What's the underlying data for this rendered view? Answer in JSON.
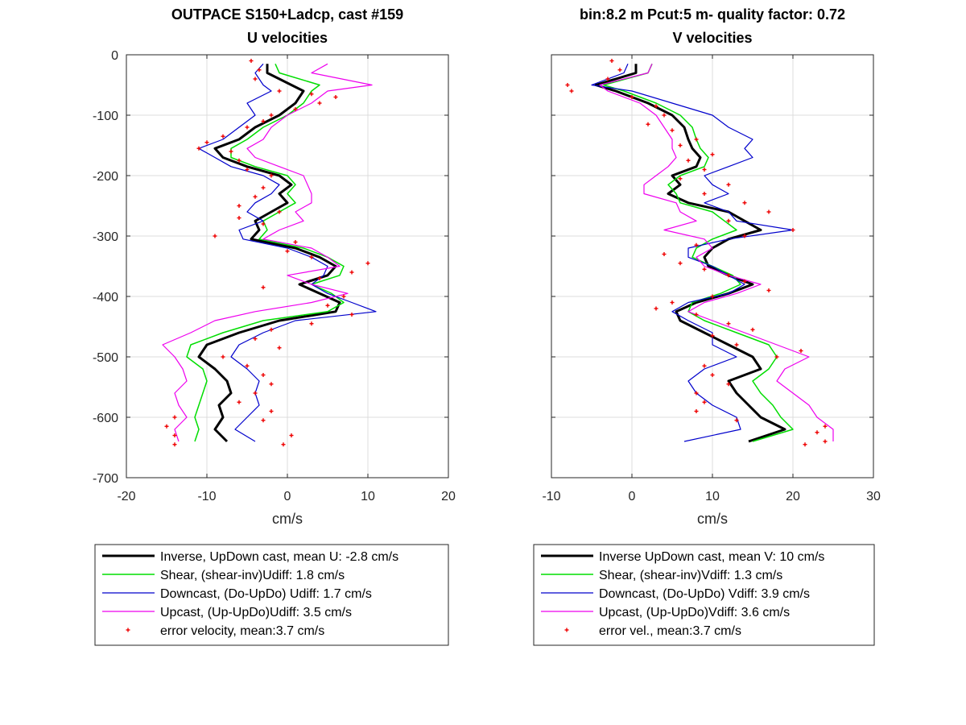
{
  "figure": {
    "left_title_line1": "OUTPACE S150+Ladcp, cast #159",
    "left_title_line2": "U velocities",
    "right_title_line1": "bin:8.2 m  Pcut:5 m- quality factor:  0.72",
    "right_title_line2": "V velocities"
  },
  "chart_data": [
    {
      "type": "line",
      "title": "U velocities",
      "xlabel": "cm/s",
      "ylabel": "",
      "xlim": [
        -20,
        20
      ],
      "ylim": [
        -700,
        0
      ],
      "xticks": [
        "-20",
        "-10",
        "0",
        "10",
        "20"
      ],
      "yticks": [
        "0",
        "-100",
        "-200",
        "-300",
        "-400",
        "-500",
        "-600",
        "-700"
      ],
      "grid": true,
      "legend_position": "below",
      "depth": [
        -15,
        -30,
        -50,
        -60,
        -80,
        -100,
        -120,
        -140,
        -155,
        -170,
        -185,
        -200,
        -215,
        -230,
        -245,
        -260,
        -275,
        -290,
        -305,
        -320,
        -335,
        -350,
        -365,
        -380,
        -395,
        -410,
        -425,
        -440,
        -460,
        -480,
        -500,
        -520,
        -540,
        -560,
        -580,
        -600,
        -620,
        -640
      ],
      "series": [
        {
          "name": "Inverse, UpDown cast, mean U:  -2.8 cm/s",
          "color": "#000000",
          "width": 3,
          "values": [
            -2.5,
            -2.5,
            0.5,
            2.0,
            1.0,
            -1.0,
            -4.0,
            -6.0,
            -9.0,
            -8.0,
            -5.0,
            -1.0,
            0.5,
            -1.0,
            0.0,
            -2.0,
            -4.0,
            -3.5,
            -4.5,
            1.0,
            4.0,
            6.0,
            5.0,
            1.5,
            4.0,
            6.5,
            6.0,
            -1.0,
            -6.0,
            -10.0,
            -11.0,
            -9.0,
            -7.5,
            -7.0,
            -8.5,
            -8.0,
            -9.0,
            -7.5
          ]
        },
        {
          "name": "Shear, (shear-inv)Udiff:  1.8 cm/s",
          "color": "#00dd00",
          "width": 1.5,
          "values": [
            -1.5,
            -1.0,
            4.0,
            3.0,
            2.0,
            0.0,
            -3.0,
            -5.0,
            -7.0,
            -7.0,
            -4.0,
            0.0,
            1.0,
            0.0,
            1.0,
            -1.0,
            -3.0,
            -2.5,
            -3.5,
            2.0,
            5.0,
            7.0,
            6.5,
            3.0,
            5.5,
            7.0,
            5.0,
            -3.0,
            -8.0,
            -12.0,
            -12.5,
            -10.5,
            -10.0,
            -10.5,
            -11.0,
            -11.5,
            -11.0,
            -11.5
          ]
        },
        {
          "name": "Downcast, (Do-UpDo) Udiff:  1.7 cm/s",
          "color": "#0000cc",
          "width": 1.2,
          "values": [
            -3.0,
            -4.0,
            -3.0,
            -2.0,
            -5.0,
            -4.0,
            -6.0,
            -8.0,
            -11.0,
            -9.0,
            -7.0,
            -3.0,
            -1.0,
            -2.0,
            -4.0,
            -5.0,
            -3.0,
            -6.0,
            -5.5,
            0.0,
            3.0,
            5.0,
            4.5,
            3.0,
            5.0,
            8.0,
            11.0,
            1.0,
            -3.0,
            -6.0,
            -7.0,
            -5.0,
            -3.5,
            -4.0,
            -3.5,
            -5.0,
            -6.5,
            -4.0
          ]
        },
        {
          "name": "Upcast, (Up-UpDo)Udiff:  3.5 cm/s",
          "color": "#ee00ee",
          "width": 1.2,
          "values": [
            5.0,
            3.0,
            10.5,
            5.0,
            3.0,
            0.0,
            -2.0,
            -3.0,
            -5.0,
            -4.0,
            -1.0,
            2.0,
            2.5,
            3.0,
            3.0,
            1.0,
            2.0,
            -1.0,
            -3.0,
            3.0,
            5.0,
            6.5,
            0.0,
            3.0,
            7.5,
            3.0,
            -4.0,
            -9.0,
            -12.0,
            -15.5,
            -14.0,
            -13.0,
            -12.5,
            -14.0,
            -13.5,
            -12.5,
            -14.0,
            -13.5
          ]
        }
      ],
      "error_series": {
        "name": "error velocity, mean:3.7 cm/s",
        "color": "#ee0000",
        "points": [
          [
            -4.5,
            -10
          ],
          [
            -3.5,
            -25
          ],
          [
            -4,
            -40
          ],
          [
            -1,
            -60
          ],
          [
            3,
            -65
          ],
          [
            6,
            -70
          ],
          [
            4,
            -80
          ],
          [
            1,
            -90
          ],
          [
            -2,
            -100
          ],
          [
            -3,
            -110
          ],
          [
            -5,
            -120
          ],
          [
            -8,
            -135
          ],
          [
            -10,
            -145
          ],
          [
            -11,
            -155
          ],
          [
            -7,
            -160
          ],
          [
            -6,
            -175
          ],
          [
            -5,
            -190
          ],
          [
            -2,
            -200
          ],
          [
            -3,
            -220
          ],
          [
            -4,
            -235
          ],
          [
            -6,
            -250
          ],
          [
            -1,
            -260
          ],
          [
            -6,
            -270
          ],
          [
            -3,
            -280
          ],
          [
            -9,
            -300
          ],
          [
            1,
            -310
          ],
          [
            0,
            -325
          ],
          [
            3,
            -335
          ],
          [
            10,
            -345
          ],
          [
            8,
            -360
          ],
          [
            4,
            -370
          ],
          [
            -3,
            -385
          ],
          [
            7,
            -400
          ],
          [
            5,
            -415
          ],
          [
            8,
            -430
          ],
          [
            3,
            -445
          ],
          [
            -2,
            -455
          ],
          [
            -4,
            -470
          ],
          [
            -1,
            -485
          ],
          [
            -8,
            -500
          ],
          [
            -5,
            -515
          ],
          [
            -3,
            -530
          ],
          [
            -2,
            -545
          ],
          [
            -4,
            -560
          ],
          [
            -6,
            -575
          ],
          [
            -2,
            -590
          ],
          [
            -14,
            -600
          ],
          [
            -15,
            -615
          ],
          [
            -14,
            -630
          ],
          [
            -14,
            -645
          ],
          [
            -3,
            -605
          ],
          [
            0.5,
            -630
          ],
          [
            -0.5,
            -645
          ]
        ]
      }
    },
    {
      "type": "line",
      "title": "V velocities",
      "xlabel": "cm/s",
      "ylabel": "",
      "xlim": [
        -10,
        30
      ],
      "ylim": [
        -700,
        0
      ],
      "xticks": [
        "-10",
        "0",
        "10",
        "20",
        "30"
      ],
      "yticks": [],
      "grid": true,
      "legend_position": "below",
      "depth": [
        -15,
        -30,
        -50,
        -60,
        -80,
        -100,
        -120,
        -140,
        -155,
        -170,
        -185,
        -200,
        -215,
        -230,
        -245,
        -260,
        -275,
        -290,
        -305,
        -320,
        -335,
        -350,
        -365,
        -380,
        -395,
        -410,
        -425,
        -440,
        -460,
        -480,
        -500,
        -520,
        -540,
        -560,
        -580,
        -600,
        -620,
        -640
      ],
      "series": [
        {
          "name": "Inverse UpDown cast, mean V:  10 cm/s",
          "color": "#000000",
          "width": 3,
          "values": [
            0.5,
            0.5,
            -4.5,
            -2.0,
            2.0,
            5.0,
            6.5,
            7.0,
            7.5,
            8.5,
            8.0,
            5.0,
            6.0,
            4.5,
            7.0,
            12.0,
            14.0,
            16.0,
            12.0,
            10.0,
            9.0,
            9.5,
            12.0,
            15.0,
            12.0,
            8.0,
            5.5,
            6.0,
            9.0,
            12.0,
            15.0,
            16.0,
            12.0,
            13.0,
            14.5,
            16.0,
            19.0,
            14.5
          ]
        },
        {
          "name": "Shear, (shear-inv)Vdiff:  1.3 cm/s",
          "color": "#00dd00",
          "width": 1.5,
          "values": [
            2.5,
            2.0,
            -3.5,
            -1.0,
            3.0,
            6.0,
            7.5,
            8.0,
            8.5,
            9.5,
            9.0,
            6.0,
            4.5,
            5.5,
            6.0,
            10.0,
            11.5,
            13.0,
            10.0,
            8.0,
            7.5,
            10.0,
            12.5,
            13.5,
            11.0,
            7.5,
            7.0,
            9.0,
            13.0,
            17.0,
            18.0,
            17.0,
            15.0,
            16.0,
            17.5,
            18.5,
            20.0,
            15.0
          ]
        },
        {
          "name": "Downcast, (Do-UpDo) Vdiff:  3.9 cm/s",
          "color": "#0000cc",
          "width": 1.2,
          "values": [
            -0.5,
            -1.0,
            -5.0,
            0.0,
            5.0,
            10.0,
            12.0,
            15.0,
            14.0,
            15.0,
            12.0,
            9.0,
            10.0,
            12.0,
            9.0,
            12.0,
            13.0,
            20.0,
            12.0,
            7.0,
            7.0,
            10.0,
            12.0,
            14.0,
            12.0,
            7.0,
            5.0,
            7.0,
            10.0,
            10.0,
            13.0,
            9.0,
            7.0,
            8.0,
            10.0,
            13.0,
            13.5,
            6.5
          ]
        },
        {
          "name": "Upcast, (Up-UpDo)Vdiff:  3.6 cm/s",
          "color": "#ee00ee",
          "width": 1.2,
          "values": [
            2.5,
            2.0,
            -4.0,
            -3.0,
            1.0,
            3.0,
            4.0,
            5.0,
            5.0,
            5.5,
            4.5,
            3.0,
            1.5,
            1.5,
            5.5,
            6.0,
            8.0,
            4.0,
            9.0,
            10.0,
            8.0,
            9.0,
            12.0,
            16.0,
            13.0,
            9.0,
            7.0,
            10.0,
            14.0,
            18.0,
            22.0,
            19.0,
            18.0,
            20.0,
            22.0,
            23.0,
            25.0,
            25.0
          ]
        }
      ],
      "error_series": {
        "name": "error vel., mean:3.7 cm/s",
        "color": "#ee0000",
        "points": [
          [
            -2.5,
            -10
          ],
          [
            -1.5,
            -25
          ],
          [
            -3,
            -40
          ],
          [
            -8,
            -50
          ],
          [
            -7.5,
            -60
          ],
          [
            0,
            -70
          ],
          [
            3,
            -85
          ],
          [
            4,
            -100
          ],
          [
            2,
            -115
          ],
          [
            5,
            -125
          ],
          [
            8,
            -140
          ],
          [
            6,
            -150
          ],
          [
            10,
            -165
          ],
          [
            7,
            -175
          ],
          [
            9,
            -190
          ],
          [
            6,
            -205
          ],
          [
            12,
            -215
          ],
          [
            9,
            -230
          ],
          [
            14,
            -245
          ],
          [
            17,
            -260
          ],
          [
            12,
            -275
          ],
          [
            20,
            -290
          ],
          [
            14,
            -300
          ],
          [
            8,
            -315
          ],
          [
            4,
            -330
          ],
          [
            6,
            -345
          ],
          [
            9,
            -355
          ],
          [
            12,
            -365
          ],
          [
            14,
            -375
          ],
          [
            17,
            -390
          ],
          [
            10,
            -400
          ],
          [
            5,
            -410
          ],
          [
            3,
            -420
          ],
          [
            8,
            -430
          ],
          [
            12,
            -445
          ],
          [
            15,
            -455
          ],
          [
            10,
            -465
          ],
          [
            13,
            -480
          ],
          [
            21,
            -490
          ],
          [
            18,
            -500
          ],
          [
            9,
            -515
          ],
          [
            10,
            -530
          ],
          [
            12,
            -545
          ],
          [
            8,
            -560
          ],
          [
            9,
            -575
          ],
          [
            8,
            -590
          ],
          [
            13,
            -605
          ],
          [
            24,
            -615
          ],
          [
            23,
            -625
          ],
          [
            24,
            -640
          ],
          [
            21.5,
            -645
          ]
        ]
      }
    }
  ]
}
